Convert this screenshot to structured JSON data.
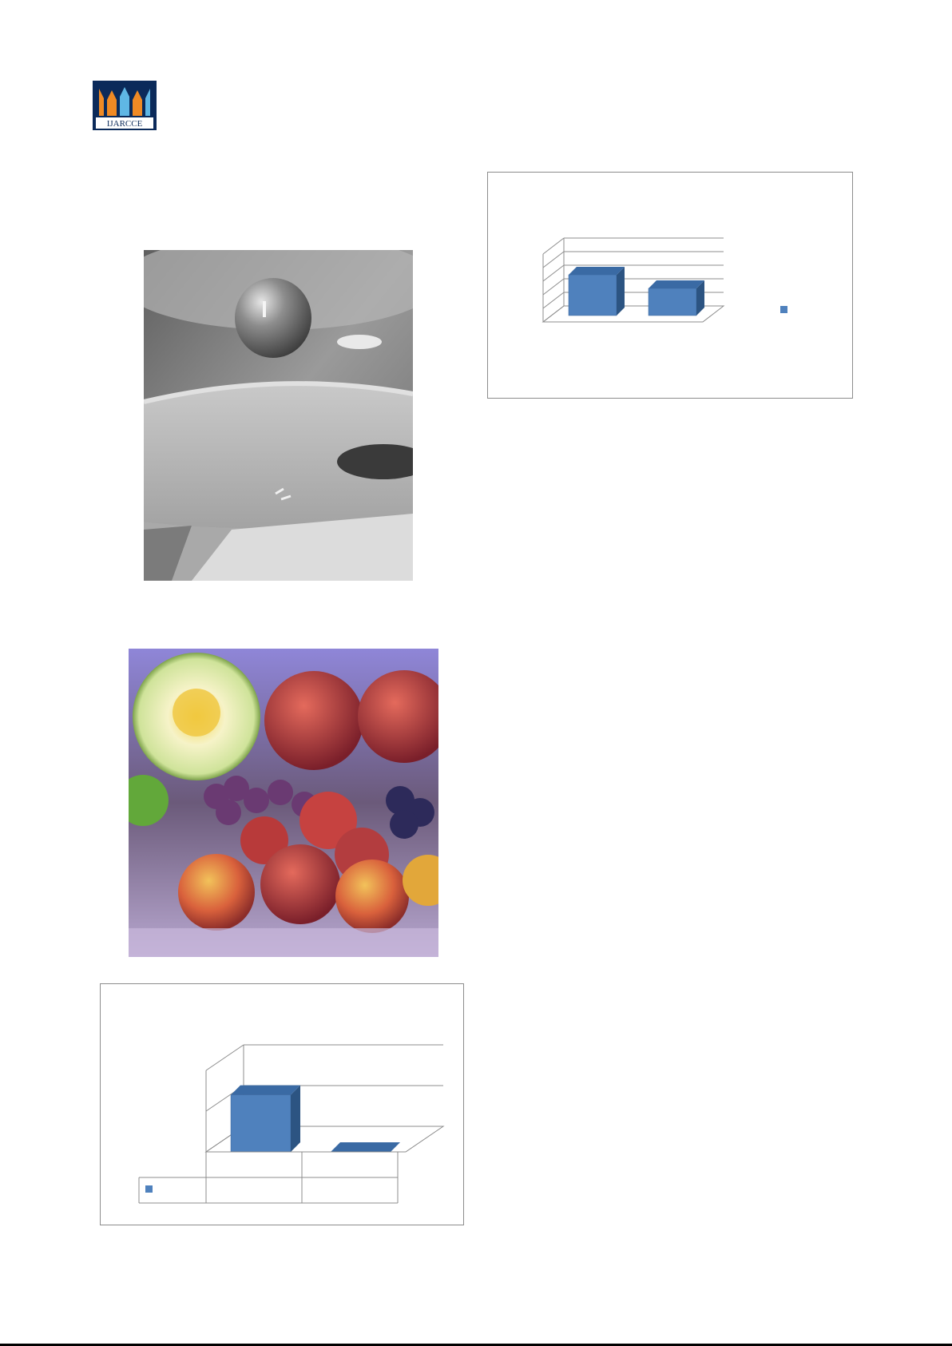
{
  "header": {
    "logo_text": "IJARCCE"
  },
  "figures": {
    "water_drop_photo": {
      "kind": "grayscale-photograph"
    },
    "fruit_photo": {
      "kind": "color-photograph"
    }
  },
  "colors": {
    "bar_front": "#4f81bd",
    "bar_side": "#2c5482",
    "bar_top": "#3a6aa4",
    "chart_border": "#8c8c8c",
    "grid": "#8c8c8c",
    "logo_bg": "#0b2a5a",
    "logo_orange": "#f08a24",
    "logo_blue": "#5fb7e5"
  },
  "chart_data": [
    {
      "type": "bar",
      "style": "3d-column",
      "categories": [
        "",
        ""
      ],
      "series": [
        {
          "values": [
            3,
            2
          ]
        }
      ],
      "ylim": [
        0,
        5
      ],
      "grid": true,
      "legend": "right",
      "title": "",
      "xlabel": "",
      "ylabel": ""
    },
    {
      "type": "bar",
      "style": "3d-column-with-data-table",
      "categories": [
        "",
        ""
      ],
      "series": [
        {
          "values": [
            1.4,
            0.0
          ]
        }
      ],
      "ylim": [
        0,
        2
      ],
      "grid": true,
      "legend": "data-table-left",
      "title": "",
      "xlabel": "",
      "ylabel": ""
    }
  ]
}
